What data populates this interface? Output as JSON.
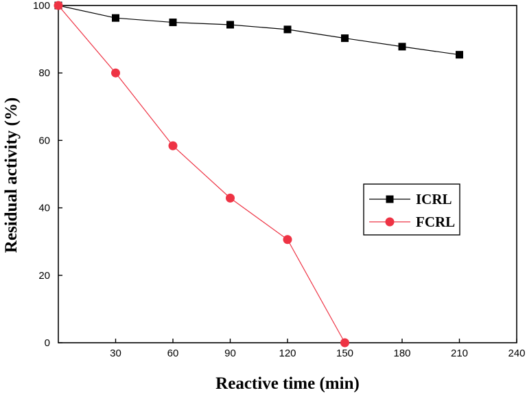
{
  "chart_data": {
    "type": "line",
    "title": "",
    "xlabel": "Reactive time (min)",
    "ylabel": "Residual activity (%)",
    "xlim": [
      0,
      240
    ],
    "ylim": [
      0,
      100
    ],
    "xticks": [
      30,
      60,
      90,
      120,
      150,
      180,
      210,
      240
    ],
    "yticks": [
      0,
      20,
      40,
      60,
      80,
      100
    ],
    "grid": false,
    "legend_position": "center-right",
    "series": [
      {
        "name": "ICRL",
        "marker": "square",
        "color": "#000000",
        "x": [
          0,
          30,
          60,
          90,
          120,
          150,
          180,
          210
        ],
        "y": [
          100,
          96.3,
          95.0,
          94.3,
          92.9,
          90.3,
          87.8,
          85.4
        ]
      },
      {
        "name": "FCRL",
        "marker": "circle",
        "color": "#ee3344",
        "x": [
          0,
          30,
          60,
          90,
          120,
          150
        ],
        "y": [
          100,
          80.0,
          58.4,
          42.9,
          30.6,
          0
        ]
      }
    ]
  }
}
